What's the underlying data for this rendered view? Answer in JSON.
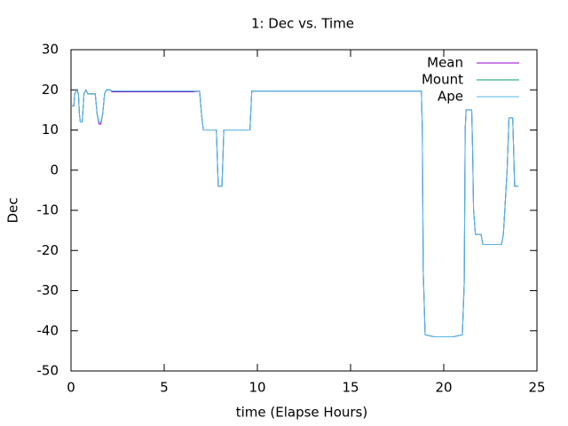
{
  "chart_data": {
    "type": "line",
    "title": "1: Dec vs. Time",
    "x_label": "time (Elapse Hours)",
    "y_label": "Dec",
    "x": [
      0,
      0.15,
      0.2,
      0.3,
      0.4,
      0.45,
      0.5,
      0.6,
      0.7,
      0.8,
      0.9,
      1.3,
      1.4,
      1.5,
      1.6,
      1.7,
      1.8,
      1.9,
      2.1,
      2.2,
      6.5,
      6.9,
      7.0,
      7.1,
      7.8,
      7.85,
      7.9,
      8.1,
      8.15,
      8.2,
      9.6,
      9.7,
      18.8,
      18.85,
      18.9,
      19.0,
      19.5,
      20.5,
      21.0,
      21.1,
      21.15,
      21.2,
      21.5,
      21.55,
      21.6,
      21.7,
      22.0,
      22.1,
      23.1,
      23.2,
      23.4,
      23.5,
      23.7,
      23.75,
      23.8,
      24.0
    ],
    "series": [
      {
        "name": "Mean",
        "color": "#9400d3",
        "values": [
          16,
          16,
          19,
          20,
          19,
          14,
          12,
          12,
          19,
          20,
          19,
          19,
          14,
          11.5,
          11.5,
          14,
          19,
          20,
          20,
          19.5,
          19.5,
          19.7,
          14,
          10,
          10,
          3,
          -4,
          -4,
          3,
          10,
          10,
          19.7,
          19.7,
          10,
          -25,
          -41,
          -41.5,
          -41.5,
          -41,
          -28,
          10,
          15,
          15,
          5,
          -10,
          -16,
          -16,
          -18.5,
          -18.5,
          -16,
          0,
          13,
          13,
          5,
          -4,
          -4
        ]
      },
      {
        "name": "Mount",
        "color": "#009e73",
        "values": [
          16,
          16,
          19,
          20,
          19,
          14,
          12,
          12,
          19,
          20,
          19,
          19,
          14,
          12,
          12,
          14,
          19,
          20,
          20,
          19.7,
          19.7,
          19.7,
          14,
          10,
          10,
          3,
          -4,
          -4,
          3,
          10,
          10,
          19.7,
          19.7,
          10,
          -25,
          -41,
          -41.5,
          -41.5,
          -41,
          -28,
          10,
          15,
          15,
          5,
          -10,
          -16,
          -16,
          -18.5,
          -18.5,
          -16,
          0,
          13,
          13,
          5,
          -4,
          -4
        ]
      },
      {
        "name": "Ape",
        "color": "#56b4e9",
        "values": [
          16,
          16,
          19,
          20,
          19,
          14,
          12,
          12,
          19,
          20,
          19,
          19,
          14,
          12,
          12,
          14,
          19,
          20,
          20,
          19.7,
          19.7,
          19.7,
          14,
          10,
          10,
          3,
          -4,
          -4,
          3,
          10,
          10,
          19.7,
          19.7,
          10,
          -25,
          -41,
          -41.5,
          -41.5,
          -41,
          -28,
          10,
          15,
          15,
          5,
          -10,
          -16,
          -16,
          -18.5,
          -18.5,
          -16,
          0,
          13,
          13,
          5,
          -4,
          -4
        ]
      }
    ],
    "xlim": [
      0,
      25
    ],
    "xticks": [
      0,
      5,
      10,
      15,
      20,
      25
    ],
    "ylim": [
      -50,
      30
    ],
    "yticks": [
      -50,
      -40,
      -30,
      -20,
      -10,
      0,
      10,
      20,
      30
    ],
    "legend": "top-right"
  }
}
